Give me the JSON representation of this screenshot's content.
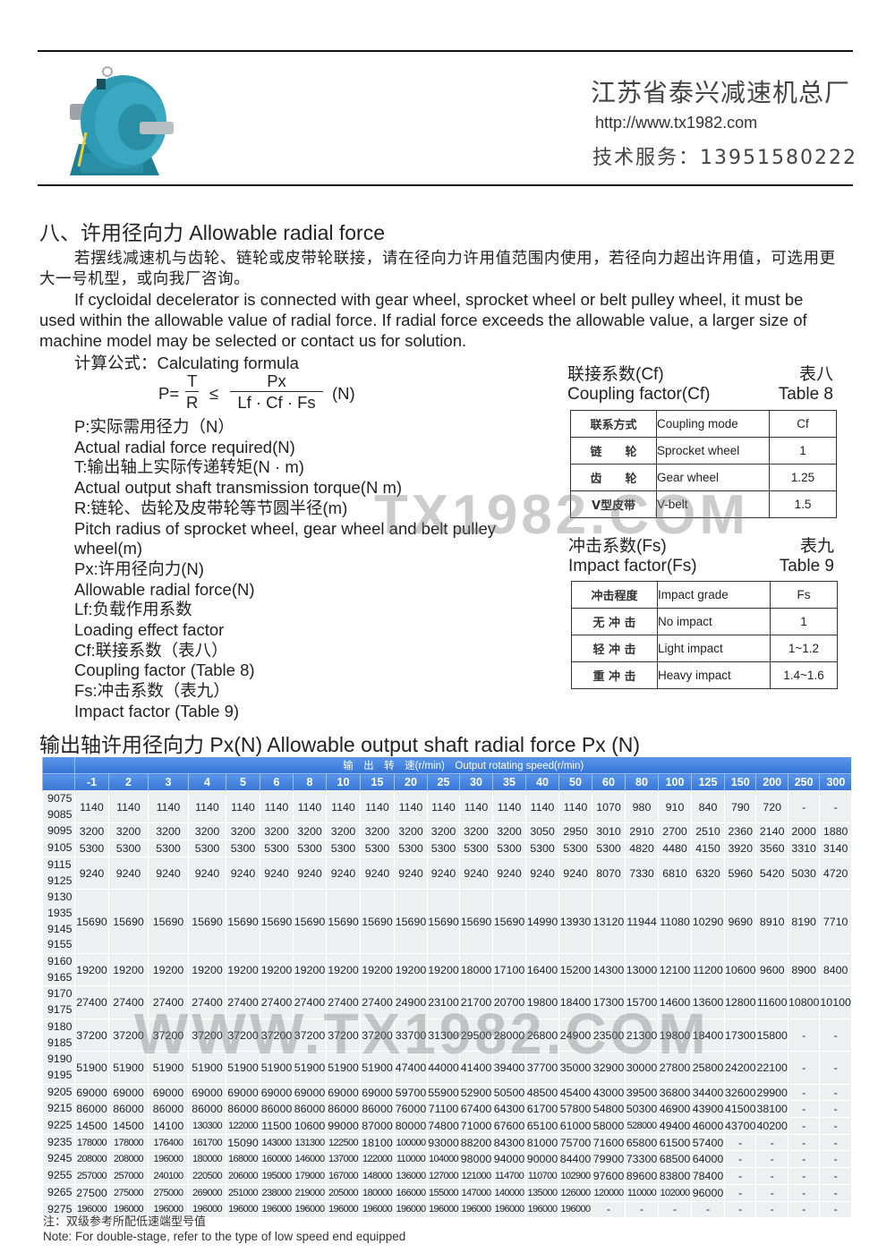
{
  "header": {
    "company": "江苏省泰兴减速机总厂",
    "url": "http://www.tx1982.com",
    "service": "技术服务：13951580222",
    "logo_icon": "gear-reducer-product-image"
  },
  "section": {
    "title": "八、许用径向力 Allowable radial force",
    "para_zh": "若摆线减速机与齿轮、链轮或皮带轮联接，请在径向力许用值范围内使用，若径向力超出许用值，可选用更大一号机型，或向我厂咨询。",
    "para_en": "If cycloidal decelerator is connected with gear wheel, sprocket wheel or belt pulley wheel, it must be used within the allowable value of radial force. If radial force exceeds the allowable value, a larger size of machine model may be selected or contact us for solution.",
    "formula_label": "计算公式：Calculating formula",
    "formula": {
      "lhs": "P=",
      "t": "T",
      "r": "R",
      "le": "≤",
      "px": "Px",
      "den": "Lf · Cf · Fs",
      "unit": "(N)"
    },
    "definitions": [
      "P:实际需用径力（N）",
      "Actual radial force required(N)",
      "T:输出轴上实际传递转矩(N · m)",
      "Actual output shaft transmission torque(N m)",
      "R:链轮、齿轮及皮带轮等节圆半径(m)",
      "Pitch radius of sprocket wheel, gear wheel and belt pulley",
      "wheel(m)",
      "Px:许用径向力(N)",
      "Allowable radial force(N)",
      "Lf:负载作用系数",
      "Loading effect factor",
      "Cf:联接系数（表八）",
      "Coupling factor (Table 8)",
      "Fs:冲击系数（表九）",
      "Impact factor (Table 9)"
    ]
  },
  "table8": {
    "caption_zh": "联接系数(Cf)",
    "caption_en": "Coupling factor(Cf)",
    "number_zh": "表八",
    "number_en": "Table 8",
    "header": {
      "zh": "联系方式",
      "en": "Coupling mode",
      "val": "Cf"
    },
    "rows": [
      {
        "zh": "链　　轮",
        "en": "Sprocket wheel",
        "val": "1"
      },
      {
        "zh": "齿　　轮",
        "en": "Gear wheel",
        "val": "1.25"
      },
      {
        "zh": "V型皮带",
        "en": "V-belt",
        "val": "1.5"
      }
    ]
  },
  "table9": {
    "caption_zh": "冲击系数(Fs)",
    "caption_en": "Impact factor(Fs)",
    "number_zh": "表九",
    "number_en": "Table 9",
    "header": {
      "zh": "冲击程度",
      "en": "Impact grade",
      "val": "Fs"
    },
    "rows": [
      {
        "zh": "无 冲 击",
        "en": "No impact",
        "val": "1"
      },
      {
        "zh": "轻 冲 击",
        "en": "Light impact",
        "val": "1~1.2"
      },
      {
        "zh": "重 冲 击",
        "en": "Heavy impact",
        "val": "1.4~1.6"
      }
    ]
  },
  "px_table": {
    "title": "输出轴许用径向力 Px(N) Allowable output shaft radial force Px (N)",
    "speed_header": "输　出　转　速(r/min)　Output rotating speed(r/min)",
    "speeds": [
      "-1",
      "2",
      "3",
      "4",
      "5",
      "6",
      "8",
      "10",
      "15",
      "20",
      "25",
      "30",
      "35",
      "40",
      "50",
      "60",
      "80",
      "100",
      "125",
      "150",
      "200",
      "250",
      "300"
    ],
    "rows": [
      {
        "models": [
          "9075",
          "9085"
        ],
        "values": [
          "1140",
          "1140",
          "1140",
          "1140",
          "1140",
          "1140",
          "1140",
          "1140",
          "1140",
          "1140",
          "1140",
          "1140",
          "1140",
          "1140",
          "1140",
          "1070",
          "980",
          "910",
          "840",
          "790",
          "720",
          "-",
          "-"
        ]
      },
      {
        "models": [
          "9095"
        ],
        "values": [
          "3200",
          "3200",
          "3200",
          "3200",
          "3200",
          "3200",
          "3200",
          "3200",
          "3200",
          "3200",
          "3200",
          "3200",
          "3200",
          "3050",
          "2950",
          "3010",
          "2910",
          "2700",
          "2510",
          "2360",
          "2140",
          "2000",
          "1880"
        ]
      },
      {
        "models": [
          "9105"
        ],
        "values": [
          "5300",
          "5300",
          "5300",
          "5300",
          "5300",
          "5300",
          "5300",
          "5300",
          "5300",
          "5300",
          "5300",
          "5300",
          "5300",
          "5300",
          "5300",
          "5300",
          "4820",
          "4480",
          "4150",
          "3920",
          "3560",
          "3310",
          "3140"
        ]
      },
      {
        "models": [
          "9115",
          "9125"
        ],
        "values": [
          "9240",
          "9240",
          "9240",
          "9240",
          "9240",
          "9240",
          "9240",
          "9240",
          "9240",
          "9240",
          "9240",
          "9240",
          "9240",
          "9240",
          "9240",
          "8070",
          "7330",
          "6810",
          "6320",
          "5960",
          "5420",
          "5030",
          "4720"
        ]
      },
      {
        "models": [
          "9130",
          "1935",
          "9145",
          "9155"
        ],
        "values": [
          "15690",
          "15690",
          "15690",
          "15690",
          "15690",
          "15690",
          "15690",
          "15690",
          "15690",
          "15690",
          "15690",
          "15690",
          "15690",
          "14990",
          "13930",
          "13120",
          "11944",
          "11080",
          "10290",
          "9690",
          "8910",
          "8190",
          "7710"
        ]
      },
      {
        "models": [
          "9160",
          "9165"
        ],
        "values": [
          "19200",
          "19200",
          "19200",
          "19200",
          "19200",
          "19200",
          "19200",
          "19200",
          "19200",
          "19200",
          "19200",
          "18000",
          "17100",
          "16400",
          "15200",
          "14300",
          "13000",
          "12100",
          "11200",
          "10600",
          "9600",
          "8900",
          "8400"
        ]
      },
      {
        "models": [
          "9170",
          "9175"
        ],
        "values": [
          "27400",
          "27400",
          "27400",
          "27400",
          "27400",
          "27400",
          "27400",
          "27400",
          "27400",
          "24900",
          "23100",
          "21700",
          "20700",
          "19800",
          "18400",
          "17300",
          "15700",
          "14600",
          "13600",
          "12800",
          "11600",
          "10800",
          "10100"
        ]
      },
      {
        "models": [
          "9180",
          "9185"
        ],
        "values": [
          "37200",
          "37200",
          "37200",
          "37200",
          "37200",
          "37200",
          "37200",
          "37200",
          "37200",
          "33700",
          "31300",
          "29500",
          "28000",
          "26800",
          "24900",
          "23500",
          "21300",
          "19800",
          "18400",
          "17300",
          "15800",
          "-",
          "-"
        ]
      },
      {
        "models": [
          "9190",
          "9195"
        ],
        "values": [
          "51900",
          "51900",
          "51900",
          "51900",
          "51900",
          "51900",
          "51900",
          "51900",
          "51900",
          "47400",
          "44000",
          "41400",
          "39400",
          "37700",
          "35000",
          "32900",
          "30000",
          "27800",
          "25800",
          "24200",
          "22100",
          "-",
          "-"
        ]
      },
      {
        "models": [
          "9205"
        ],
        "values": [
          "69000",
          "69000",
          "69000",
          "69000",
          "69000",
          "69000",
          "69000",
          "69000",
          "69000",
          "59700",
          "55900",
          "52900",
          "50500",
          "48500",
          "45400",
          "43000",
          "39500",
          "36800",
          "34400",
          "32600",
          "29900",
          "-",
          "-"
        ]
      },
      {
        "models": [
          "9215"
        ],
        "values": [
          "86000",
          "86000",
          "86000",
          "86000",
          "86000",
          "86000",
          "86000",
          "86000",
          "86000",
          "76000",
          "71100",
          "67400",
          "64300",
          "61700",
          "57800",
          "54800",
          "50300",
          "46900",
          "43900",
          "41500",
          "38100",
          "-",
          "-"
        ]
      },
      {
        "models": [
          "9225"
        ],
        "values": [
          "14500",
          "14500",
          "14100",
          "130300",
          "122000",
          "11500",
          "10600",
          "99000",
          "87000",
          "80000",
          "74800",
          "71000",
          "67600",
          "65100",
          "61000",
          "58000",
          "528000",
          "49400",
          "46000",
          "43700",
          "40200",
          "-",
          "-"
        ]
      },
      {
        "models": [
          "9235"
        ],
        "values": [
          "178000",
          "178000",
          "176400",
          "161700",
          "15090",
          "143000",
          "131300",
          "122500",
          "18100",
          "100000",
          "93000",
          "88200",
          "84300",
          "81000",
          "75700",
          "71600",
          "65800",
          "61500",
          "57400",
          "-",
          "-",
          "-",
          "-"
        ]
      },
      {
        "models": [
          "9245"
        ],
        "values": [
          "208000",
          "208000",
          "196000",
          "180000",
          "168000",
          "160000",
          "146000",
          "137000",
          "122000",
          "110000",
          "104000",
          "98000",
          "94000",
          "90000",
          "84400",
          "79900",
          "73300",
          "68500",
          "64000",
          "-",
          "-",
          "-",
          "-"
        ]
      },
      {
        "models": [
          "9255"
        ],
        "values": [
          "257000",
          "257000",
          "240100",
          "220500",
          "206000",
          "195000",
          "179000",
          "167000",
          "148000",
          "136000",
          "127000",
          "121000",
          "114700",
          "110700",
          "102900",
          "97600",
          "89600",
          "83800",
          "78400",
          "-",
          "-",
          "-",
          "-"
        ]
      },
      {
        "models": [
          "9265"
        ],
        "values": [
          "27500",
          "275000",
          "275000",
          "269000",
          "251000",
          "238000",
          "219000",
          "205000",
          "180000",
          "166000",
          "155000",
          "147000",
          "140000",
          "135000",
          "126000",
          "120000",
          "110000",
          "102000",
          "96000",
          "-",
          "-",
          "-",
          "-"
        ]
      },
      {
        "models": [
          "9275"
        ],
        "values": [
          "196000",
          "196000",
          "196000",
          "196000",
          "196000",
          "196000",
          "196000",
          "196000",
          "196000",
          "196000",
          "196000",
          "196000",
          "196000",
          "196000",
          "196000",
          "-",
          "-",
          "-",
          "-",
          "-",
          "-",
          "-",
          "-"
        ]
      }
    ]
  },
  "watermarks": [
    "TX1982.COM",
    "WWW.TX1982.COM"
  ],
  "note": {
    "zh": "注：双级参考所配低速端型号值",
    "en": "Note: For double-stage, refer to the type of low speed end equipped"
  },
  "colors": {
    "header_blue": "#3d7fe0",
    "cell_bg": "#eeeff1",
    "product_teal": "#2a8fa6"
  }
}
